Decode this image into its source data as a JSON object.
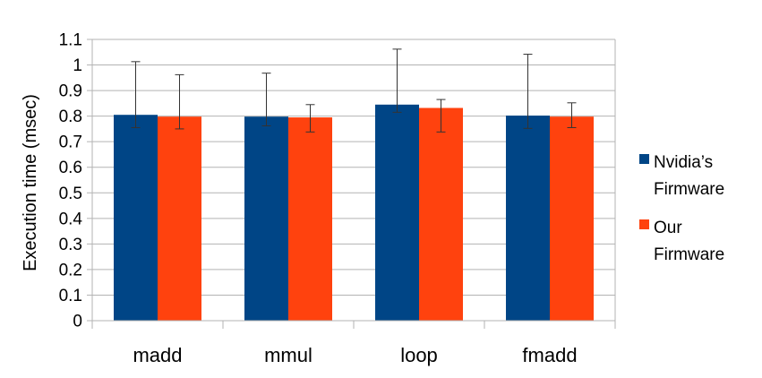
{
  "chart_data": {
    "type": "bar",
    "title": "",
    "xlabel": "",
    "ylabel": "Execution time (msec)",
    "categories": [
      "madd",
      "mmul",
      "loop",
      "fmadd"
    ],
    "ylim": [
      0,
      1.1
    ],
    "yticks": [
      "0",
      "0.1",
      "0.2",
      "0.3",
      "0.4",
      "0.5",
      "0.6",
      "0.7",
      "0.8",
      "0.9",
      "1",
      "1.1"
    ],
    "grid": true,
    "legend_position": "right",
    "series": [
      {
        "name": "Nvidia's Firmware",
        "legend_lines": [
          "Nvidia’s",
          "Firmware"
        ],
        "color": "#004586",
        "values": [
          0.805,
          0.798,
          0.845,
          0.802
        ],
        "error_low": [
          0.755,
          0.762,
          0.815,
          0.752
        ],
        "error_high": [
          1.013,
          0.968,
          1.062,
          1.042
        ]
      },
      {
        "name": "Our Firmware",
        "legend_lines": [
          "Our",
          "Firmware"
        ],
        "color": "#ff420e",
        "values": [
          0.798,
          0.795,
          0.832,
          0.798
        ],
        "error_low": [
          0.75,
          0.738,
          0.738,
          0.755
        ],
        "error_high": [
          0.962,
          0.845,
          0.865,
          0.852
        ]
      }
    ]
  }
}
